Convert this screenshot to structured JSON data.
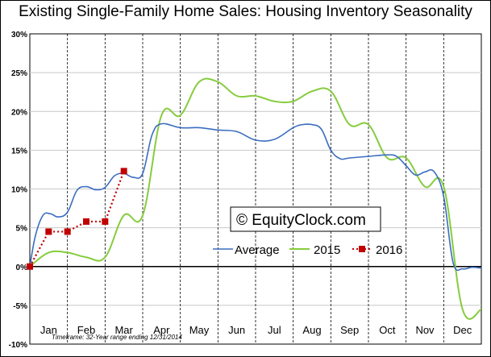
{
  "chart_data": {
    "type": "line",
    "title": "Existing Single-Family Home Sales: Housing Inventory Seasonality",
    "xlabel": "",
    "ylabel": "",
    "y_axis": {
      "min": -10,
      "max": 30,
      "step": 5,
      "tick_labels": [
        "30%",
        "25%",
        "20%",
        "15%",
        "10%",
        "5%",
        "0%",
        "-5%",
        "-10%"
      ]
    },
    "x_axis": {
      "min": 0,
      "max": 12,
      "categories": [
        "Jan",
        "Feb",
        "Mar",
        "Apr",
        "May",
        "Jun",
        "Jul",
        "Aug",
        "Sep",
        "Oct",
        "Nov",
        "Dec"
      ],
      "grid": "dashed-vertical"
    },
    "grid": true,
    "legend_placement": "lower-middle",
    "series": [
      {
        "name": "Average",
        "color": "#3b6dc0",
        "style": "solid",
        "x": [
          0,
          0.15,
          0.35,
          0.55,
          0.75,
          1.0,
          1.25,
          1.5,
          1.75,
          2.0,
          2.25,
          2.5,
          2.75,
          3.0,
          3.25,
          3.5,
          4.0,
          4.5,
          5.0,
          5.5,
          6.0,
          6.5,
          7.0,
          7.25,
          7.5,
          7.75,
          8.0,
          8.25,
          8.5,
          9.0,
          9.5,
          9.75,
          10.0,
          10.25,
          10.5,
          10.75,
          11.0,
          11.25,
          11.5,
          11.75,
          12.0
        ],
        "y": [
          0,
          4.0,
          6.6,
          6.8,
          6.4,
          7.0,
          9.8,
          10.3,
          9.9,
          10.2,
          11.7,
          12.0,
          11.5,
          12.0,
          17.0,
          18.4,
          17.9,
          17.9,
          17.6,
          17.4,
          16.3,
          16.4,
          17.9,
          18.3,
          18.3,
          17.7,
          15.0,
          13.9,
          14.0,
          14.2,
          14.4,
          14.2,
          13.0,
          11.8,
          12.2,
          12.2,
          9.0,
          0.5,
          -0.3,
          -0.1,
          -0.2
        ]
      },
      {
        "name": "2015",
        "color": "#86cc3d",
        "style": "solid",
        "x": [
          0,
          0.5,
          1.0,
          1.5,
          2.0,
          2.5,
          3.0,
          3.5,
          4.0,
          4.5,
          5.0,
          5.5,
          6.0,
          6.5,
          7.0,
          7.5,
          8.0,
          8.5,
          9.0,
          9.5,
          10.0,
          10.5,
          11.0,
          11.5,
          12.0
        ],
        "y": [
          0,
          1.8,
          1.8,
          1.2,
          1.2,
          6.6,
          6.6,
          19.5,
          19.5,
          23.8,
          23.8,
          22.0,
          22.0,
          21.3,
          21.3,
          22.6,
          22.6,
          18.3,
          18.3,
          14.0,
          14.0,
          10.3,
          10.3,
          -5.5,
          -5.5
        ]
      },
      {
        "name": "2016",
        "color": "#c00000",
        "style": "dotted-square-markers",
        "x": [
          0,
          0.5,
          1.0,
          1.5,
          2.0,
          2.5
        ],
        "y": [
          0,
          4.5,
          4.5,
          5.8,
          5.8,
          12.3
        ]
      }
    ],
    "annotations": {
      "watermark": "© EquityClock.com",
      "timeframe_note": "Timeframe: 32-Year range ending 12/31/2014"
    }
  }
}
